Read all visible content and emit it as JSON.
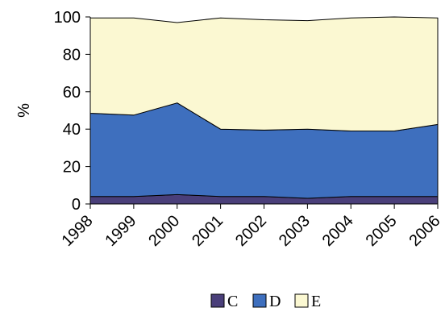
{
  "chart_data": {
    "type": "area",
    "stacked": true,
    "x": [
      "1998",
      "1999",
      "2000",
      "2001",
      "2002",
      "2003",
      "2004",
      "2005",
      "2006"
    ],
    "ylabel": "%",
    "xlabel": "",
    "ylim": [
      0,
      100
    ],
    "yticks": [
      "0",
      "20",
      "40",
      "60",
      "80",
      "100"
    ],
    "grid": false,
    "legend_position": "bottom",
    "series": [
      {
        "name": "C",
        "color": "#4a3f7a",
        "values": [
          4,
          4,
          5,
          4,
          4,
          3,
          4,
          4,
          4
        ]
      },
      {
        "name": "D",
        "color": "#3e6fbe",
        "values": [
          44.5,
          43.5,
          49,
          36,
          35.5,
          37,
          35,
          35,
          38.5
        ]
      },
      {
        "name": "E",
        "color": "#fbf8d2",
        "values": [
          51,
          52,
          43,
          59.5,
          59,
          58,
          60.5,
          61,
          57
        ]
      }
    ]
  }
}
